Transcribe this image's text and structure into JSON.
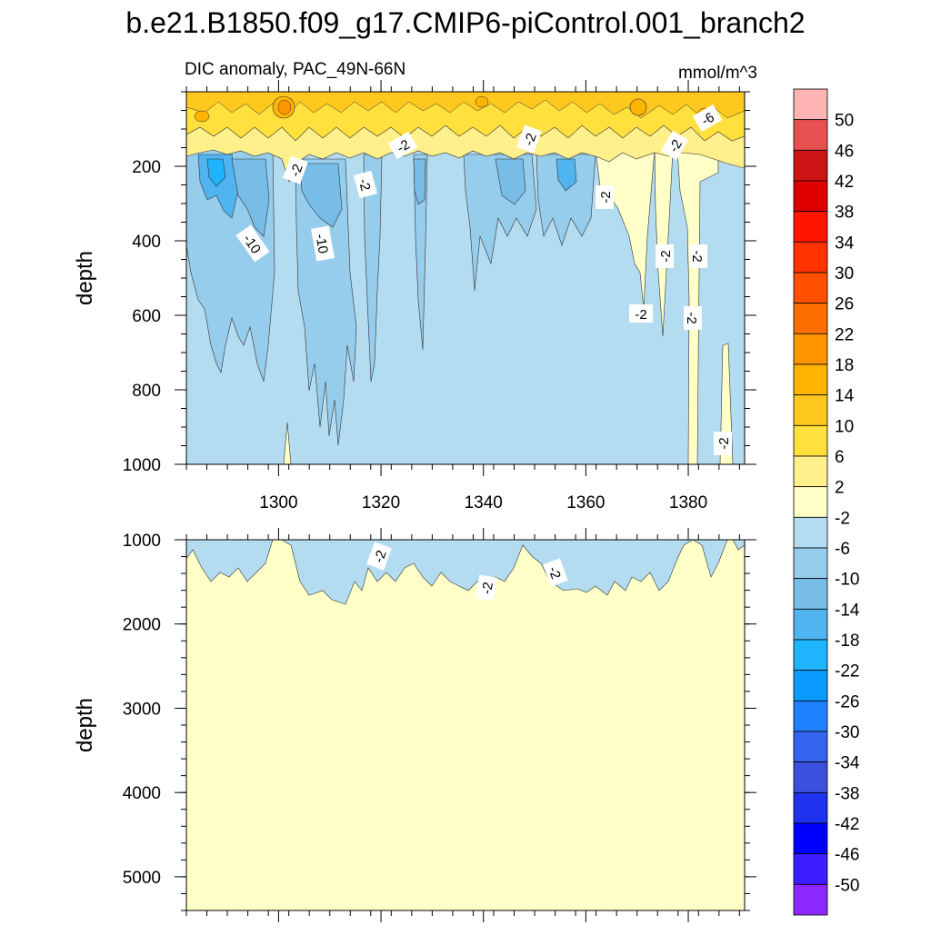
{
  "chart_data": {
    "type": "heatmap",
    "title": "b.e21.B1850.f09_g17.CMIP6-piControl.001_branch2",
    "subtitle_left": "DIC anomaly, PAC_49N-66N",
    "subtitle_right": "mmol/m^3",
    "x_ticks": [
      1300,
      1320,
      1340,
      1360,
      1380
    ],
    "xlim": [
      1282,
      1391
    ],
    "colorbar": {
      "labels": [
        "50",
        "46",
        "42",
        "38",
        "34",
        "30",
        "26",
        "22",
        "18",
        "14",
        "10",
        "6",
        "2",
        "-2",
        "-6",
        "-10",
        "-14",
        "-18",
        "-22",
        "-26",
        "-30",
        "-34",
        "-38",
        "-42",
        "-46",
        "-50"
      ],
      "colors": [
        "#ffb4b4",
        "#e85050",
        "#cc1414",
        "#e00000",
        "#ff1400",
        "#ff3200",
        "#ff5000",
        "#ff6e00",
        "#ff9600",
        "#ffb400",
        "#ffc81e",
        "#ffe03c",
        "#fff08c",
        "#ffffc8",
        "#b4dcf0",
        "#96ccec",
        "#78bde8",
        "#50b4f0",
        "#1eb4ff",
        "#0a9bff",
        "#1e82ff",
        "#3264f0",
        "#3c50e0",
        "#1e32f0",
        "#0000ff",
        "#3c1eff",
        "#8c28ff"
      ]
    },
    "panels": [
      {
        "name": "upper",
        "ylabel": "depth",
        "ylim": [
          0,
          1000
        ],
        "y_ticks": [
          200,
          400,
          600,
          800,
          1000
        ],
        "contour_labels": [
          "-2",
          "-2",
          "-2",
          "-2",
          "-2",
          "-2",
          "-6",
          "-10",
          "-10",
          "-2",
          "-2",
          "-2",
          "-2",
          "-2"
        ],
        "background_class": "-6 to -2"
      },
      {
        "name": "lower",
        "ylabel": "depth",
        "ylim": [
          1000,
          5400
        ],
        "y_ticks": [
          1000,
          2000,
          3000,
          4000,
          5000
        ],
        "contour_labels": [
          "-2",
          "-2",
          "-2"
        ],
        "background_class": "-2 to 2"
      }
    ]
  }
}
